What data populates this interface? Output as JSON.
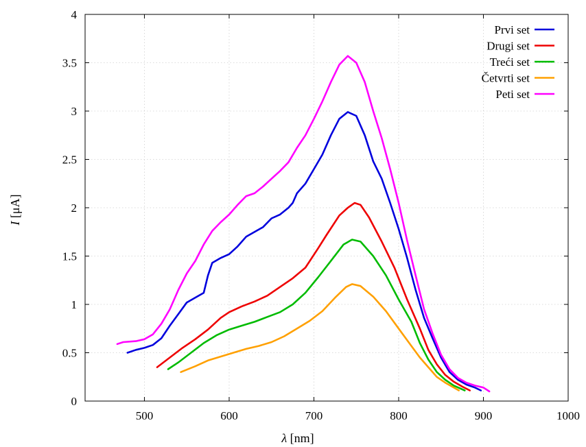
{
  "chart_data": {
    "type": "line",
    "xlabel": {
      "symbol": "λ",
      "unit": "[nm]"
    },
    "ylabel": {
      "symbol": "I",
      "unit": "[μA]"
    },
    "xlim": [
      430,
      1000
    ],
    "ylim": [
      0,
      4
    ],
    "xticks": [
      500,
      600,
      700,
      800,
      900,
      1000
    ],
    "yticks": [
      0,
      0.5,
      1,
      1.5,
      2,
      2.5,
      3,
      3.5,
      4
    ],
    "xtick_labels": [
      "500",
      "600",
      "700",
      "800",
      "900",
      "1000"
    ],
    "ytick_labels": [
      "0",
      "0.5",
      "1",
      "1.5",
      "2",
      "2.5",
      "3",
      "3.5",
      "4"
    ],
    "grid": true,
    "legend_position": "top-right",
    "series": [
      {
        "name": "Prvi set",
        "color": "#0000dd",
        "points": [
          [
            480,
            0.5
          ],
          [
            490,
            0.53
          ],
          [
            500,
            0.55
          ],
          [
            510,
            0.58
          ],
          [
            520,
            0.65
          ],
          [
            530,
            0.78
          ],
          [
            540,
            0.9
          ],
          [
            550,
            1.02
          ],
          [
            560,
            1.07
          ],
          [
            570,
            1.12
          ],
          [
            575,
            1.3
          ],
          [
            580,
            1.43
          ],
          [
            590,
            1.48
          ],
          [
            600,
            1.52
          ],
          [
            610,
            1.6
          ],
          [
            620,
            1.7
          ],
          [
            630,
            1.75
          ],
          [
            640,
            1.8
          ],
          [
            650,
            1.89
          ],
          [
            660,
            1.93
          ],
          [
            670,
            2.0
          ],
          [
            675,
            2.05
          ],
          [
            680,
            2.15
          ],
          [
            690,
            2.25
          ],
          [
            700,
            2.4
          ],
          [
            710,
            2.55
          ],
          [
            720,
            2.75
          ],
          [
            730,
            2.92
          ],
          [
            740,
            2.99
          ],
          [
            750,
            2.95
          ],
          [
            760,
            2.75
          ],
          [
            770,
            2.48
          ],
          [
            780,
            2.3
          ],
          [
            790,
            2.05
          ],
          [
            800,
            1.78
          ],
          [
            810,
            1.48
          ],
          [
            820,
            1.15
          ],
          [
            830,
            0.86
          ],
          [
            840,
            0.65
          ],
          [
            850,
            0.45
          ],
          [
            860,
            0.3
          ],
          [
            870,
            0.22
          ],
          [
            880,
            0.17
          ],
          [
            890,
            0.14
          ],
          [
            897,
            0.11
          ]
        ]
      },
      {
        "name": "Drugi set",
        "color": "#ee0000",
        "points": [
          [
            515,
            0.35
          ],
          [
            530,
            0.45
          ],
          [
            545,
            0.55
          ],
          [
            560,
            0.64
          ],
          [
            575,
            0.74
          ],
          [
            590,
            0.86
          ],
          [
            600,
            0.92
          ],
          [
            615,
            0.98
          ],
          [
            630,
            1.03
          ],
          [
            645,
            1.09
          ],
          [
            660,
            1.18
          ],
          [
            675,
            1.27
          ],
          [
            690,
            1.38
          ],
          [
            705,
            1.58
          ],
          [
            715,
            1.72
          ],
          [
            730,
            1.92
          ],
          [
            740,
            2.0
          ],
          [
            748,
            2.05
          ],
          [
            755,
            2.03
          ],
          [
            765,
            1.9
          ],
          [
            780,
            1.65
          ],
          [
            795,
            1.38
          ],
          [
            810,
            1.05
          ],
          [
            825,
            0.75
          ],
          [
            835,
            0.53
          ],
          [
            845,
            0.38
          ],
          [
            855,
            0.27
          ],
          [
            865,
            0.2
          ],
          [
            875,
            0.15
          ],
          [
            884,
            0.11
          ]
        ]
      },
      {
        "name": "Treći set",
        "color": "#00bb00",
        "points": [
          [
            528,
            0.33
          ],
          [
            540,
            0.4
          ],
          [
            555,
            0.5
          ],
          [
            570,
            0.6
          ],
          [
            585,
            0.68
          ],
          [
            600,
            0.74
          ],
          [
            615,
            0.78
          ],
          [
            630,
            0.82
          ],
          [
            645,
            0.87
          ],
          [
            660,
            0.92
          ],
          [
            675,
            1.0
          ],
          [
            690,
            1.12
          ],
          [
            705,
            1.28
          ],
          [
            720,
            1.45
          ],
          [
            735,
            1.62
          ],
          [
            745,
            1.67
          ],
          [
            755,
            1.65
          ],
          [
            770,
            1.5
          ],
          [
            785,
            1.3
          ],
          [
            800,
            1.05
          ],
          [
            815,
            0.82
          ],
          [
            825,
            0.6
          ],
          [
            835,
            0.43
          ],
          [
            845,
            0.3
          ],
          [
            855,
            0.22
          ],
          [
            865,
            0.16
          ],
          [
            878,
            0.11
          ]
        ]
      },
      {
        "name": "Četvrti set",
        "color": "#ffa000",
        "points": [
          [
            543,
            0.3
          ],
          [
            560,
            0.36
          ],
          [
            575,
            0.42
          ],
          [
            590,
            0.46
          ],
          [
            605,
            0.5
          ],
          [
            620,
            0.54
          ],
          [
            635,
            0.57
          ],
          [
            650,
            0.61
          ],
          [
            665,
            0.67
          ],
          [
            680,
            0.75
          ],
          [
            695,
            0.83
          ],
          [
            710,
            0.93
          ],
          [
            725,
            1.07
          ],
          [
            738,
            1.18
          ],
          [
            745,
            1.21
          ],
          [
            755,
            1.19
          ],
          [
            770,
            1.08
          ],
          [
            785,
            0.93
          ],
          [
            800,
            0.75
          ],
          [
            815,
            0.57
          ],
          [
            825,
            0.45
          ],
          [
            835,
            0.35
          ],
          [
            845,
            0.25
          ],
          [
            855,
            0.19
          ],
          [
            865,
            0.14
          ],
          [
            871,
            0.11
          ]
        ]
      },
      {
        "name": "Peti set",
        "color": "#ff00ff",
        "points": [
          [
            468,
            0.59
          ],
          [
            475,
            0.61
          ],
          [
            490,
            0.62
          ],
          [
            500,
            0.64
          ],
          [
            510,
            0.69
          ],
          [
            520,
            0.8
          ],
          [
            530,
            0.95
          ],
          [
            540,
            1.15
          ],
          [
            550,
            1.32
          ],
          [
            560,
            1.45
          ],
          [
            570,
            1.62
          ],
          [
            580,
            1.76
          ],
          [
            590,
            1.85
          ],
          [
            600,
            1.93
          ],
          [
            610,
            2.03
          ],
          [
            620,
            2.12
          ],
          [
            630,
            2.15
          ],
          [
            640,
            2.22
          ],
          [
            650,
            2.3
          ],
          [
            660,
            2.38
          ],
          [
            670,
            2.47
          ],
          [
            680,
            2.62
          ],
          [
            690,
            2.75
          ],
          [
            700,
            2.92
          ],
          [
            710,
            3.1
          ],
          [
            720,
            3.3
          ],
          [
            730,
            3.48
          ],
          [
            740,
            3.57
          ],
          [
            750,
            3.5
          ],
          [
            760,
            3.3
          ],
          [
            770,
            3.0
          ],
          [
            780,
            2.72
          ],
          [
            790,
            2.4
          ],
          [
            800,
            2.05
          ],
          [
            810,
            1.66
          ],
          [
            820,
            1.3
          ],
          [
            830,
            0.95
          ],
          [
            840,
            0.7
          ],
          [
            850,
            0.48
          ],
          [
            860,
            0.33
          ],
          [
            870,
            0.24
          ],
          [
            880,
            0.19
          ],
          [
            890,
            0.16
          ],
          [
            900,
            0.14
          ],
          [
            907,
            0.1
          ]
        ]
      }
    ]
  }
}
